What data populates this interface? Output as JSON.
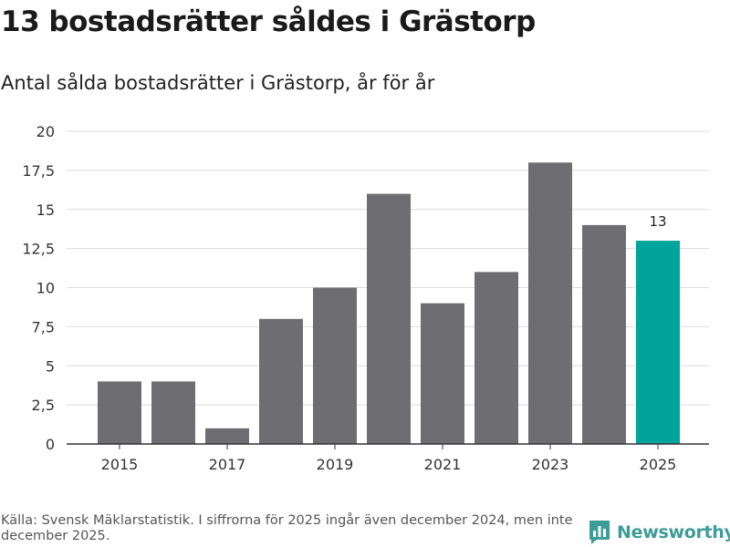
{
  "header": {
    "title": "13 bostadsrätter såldes i Grästorp",
    "subtitle": "Antal sålda bostadsrätter i Grästorp, år för år"
  },
  "chart_data": {
    "type": "bar",
    "title": "13 bostadsrätter såldes i Grästorp",
    "subtitle": "Antal sålda bostadsrätter i Grästorp, år för år",
    "xlabel": "",
    "ylabel": "",
    "categories": [
      "2015",
      "2016",
      "2017",
      "2018",
      "2019",
      "2020",
      "2021",
      "2022",
      "2023",
      "2024",
      "2025"
    ],
    "values": [
      4,
      4,
      1,
      8,
      10,
      16,
      9,
      11,
      18,
      14,
      13
    ],
    "x_tick_labels": [
      "2015",
      "2017",
      "2019",
      "2021",
      "2023",
      "2025"
    ],
    "y_ticks": [
      0,
      2.5,
      5,
      7.5,
      10,
      12.5,
      15,
      17.5,
      20
    ],
    "y_tick_labels": [
      "0",
      "2,5",
      "5",
      "7,5",
      "10",
      "12,5",
      "15",
      "17,5",
      "20"
    ],
    "ylim": [
      0,
      20
    ],
    "grid": true,
    "highlight_category": "2025",
    "highlight_label": "13",
    "colors": {
      "bar": "#6e6d72",
      "highlight": "#00a49a",
      "grid": "#dcdcdc",
      "axis": "#333333"
    }
  },
  "footer": {
    "source": "Källa: Svensk Mäklarstatistik. I siffrorna för 2025 ingår även december 2024, men inte december 2025."
  },
  "logo": {
    "text": "Newsworthy",
    "icon": "bar-chart-icon",
    "color": "#3d9c97"
  }
}
